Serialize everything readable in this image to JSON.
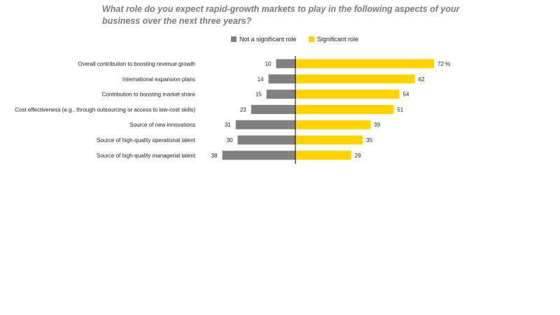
{
  "title": "What role do you expect rapid-growth markets to play in the following aspects of your\nbusiness over the next three years?",
  "legend": {
    "not_significant": "Not a significant role",
    "significant": "Significant role"
  },
  "colors": {
    "not_significant": "#808080",
    "significant": "#FFD200",
    "axis": "#000000",
    "title": "#7a7a7a"
  },
  "chart_data": {
    "type": "bar",
    "orientation": "horizontal-diverging",
    "categories": [
      "Overall contribution to boosting revenue growth",
      "International expansion plans",
      "Contribution to boosting market share",
      "Cost effectiveness (e.g., through outsourcing or access to low-cost skills)",
      "Source of new innovations",
      "Source of high-quality operational talent",
      "Source of high-quality managerial talent"
    ],
    "series": [
      {
        "name": "Not a significant role",
        "values": [
          10,
          14,
          15,
          23,
          31,
          30,
          38
        ]
      },
      {
        "name": "Significant role",
        "values": [
          72,
          62,
          54,
          51,
          39,
          35,
          29
        ]
      }
    ],
    "value_labels_left": [
      "10",
      "14",
      "15",
      "23",
      "31",
      "30",
      "38"
    ],
    "value_labels_right": [
      "72 %",
      "62",
      "54",
      "51",
      "39",
      "35",
      "29"
    ],
    "grid": false,
    "legend_position": "top"
  }
}
